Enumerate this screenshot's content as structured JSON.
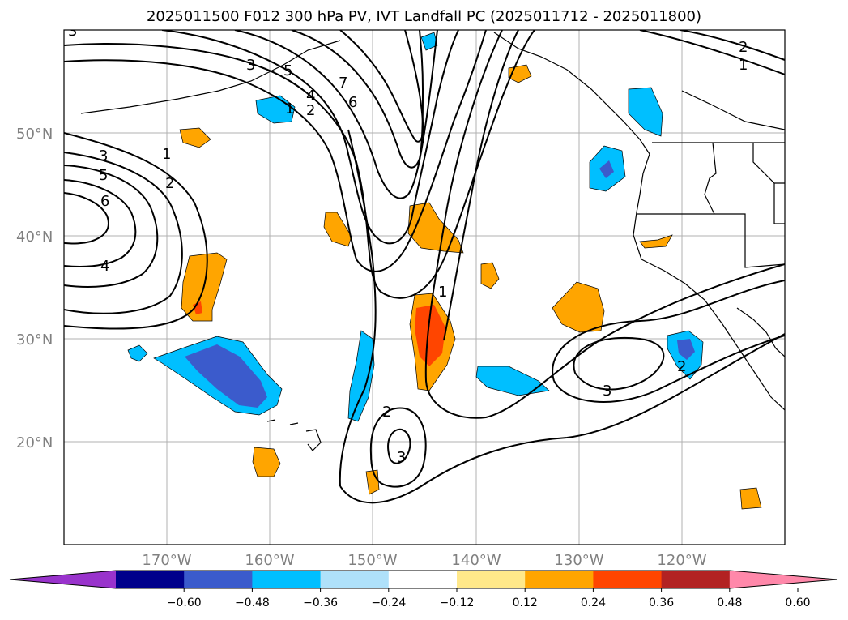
{
  "title": "2025011500 F012 300 hPa PV, IVT Landfall PC (2025011712 - 2025011800)",
  "map": {
    "lon_range": [
      -180,
      -110
    ],
    "lat_range": [
      10,
      60
    ],
    "lat_ticks": [
      "20°N",
      "30°N",
      "40°N",
      "50°N"
    ],
    "lon_ticks": [
      "170°W",
      "160°W",
      "150°W",
      "140°W",
      "130°W",
      "120°W"
    ],
    "grid": true
  },
  "colorbar": {
    "ticks": [
      "−0.60",
      "−0.48",
      "−0.36",
      "−0.24",
      "−0.12",
      "0.12",
      "0.24",
      "0.36",
      "0.48",
      "0.60"
    ],
    "colors": [
      "#9933cc",
      "#00008b",
      "#3b5bcc",
      "#00bfff",
      "#afe1fa",
      "#ffffff",
      "#ffe88a",
      "#ffa500",
      "#ff4500",
      "#b22222",
      "#ff88aa"
    ]
  },
  "contour_labels": {
    "pv_3a": "3",
    "pv_5a": "5",
    "pv_7": "7",
    "pv_6a": "6",
    "pv_4a": "4",
    "pv_2a": "2",
    "pv_1a": "1",
    "pv_3b": "3",
    "pv_2b": "2",
    "pv_1b": "1",
    "pv_left_3": "3",
    "pv_left_5": "5",
    "pv_left_6": "6",
    "pv_left_4": "4",
    "pv_left_1": "1",
    "pv_left_2": "2",
    "pv_mid_1": "1",
    "pv_sw_2": "2",
    "pv_sw_3": "3",
    "pv_se_3": "3",
    "pv_se_2": "2"
  }
}
